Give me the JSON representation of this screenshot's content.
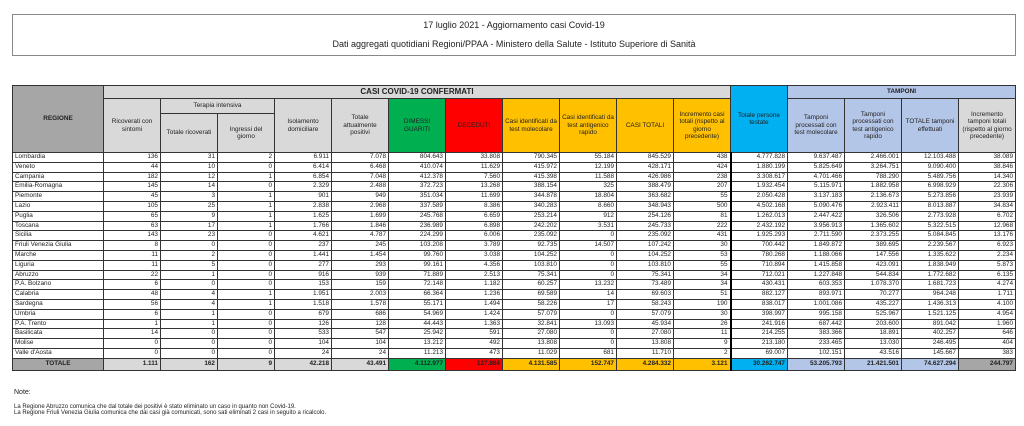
{
  "title": "17 luglio 2021 - Aggiornamento casi Covid-19",
  "subtitle": "Dati aggregati quotidiani Regioni/PPAA - Ministero della Salute - Istituto Superiore di Sanità",
  "header": {
    "regione": "REGIONE",
    "casi": "CASI COVID-19 CONFERMATI",
    "tamponi": "TAMPONI",
    "terapia": "Terapia intensiva",
    "cols": [
      "Ricoverati con sintomi",
      "Totale ricoverati",
      "Ingressi del giorno",
      "Isolamento domiciliare",
      "Totale attualmente positivi",
      "DIMESSI GUARITI",
      "DECEDUTI",
      "Casi identificati da test molecolare",
      "Casi identificati da test antigenico rapido",
      "CASI TOTALI",
      "Incremento casi totali (rispetto al giorno precedente)",
      "Totale persone testate",
      "Tamponi processati con test molecolare",
      "Tamponi processati con test antigenico rapido",
      "TOTALE tamponi effettuati",
      "Incremento tamponi totali (rispetto al giorno precedente)"
    ]
  },
  "rows": [
    [
      "Lombardia",
      "136",
      "31",
      "2",
      "6.911",
      "7.078",
      "804.643",
      "33.808",
      "790.345",
      "55.184",
      "845.529",
      "438",
      "4.777.828",
      "9.637.487",
      "2.466.001",
      "12.103.488",
      "38.089"
    ],
    [
      "Veneto",
      "44",
      "10",
      "0",
      "6.414",
      "6.468",
      "410.074",
      "11.629",
      "415.972",
      "12.199",
      "428.171",
      "424",
      "1.880.199",
      "5.825.649",
      "3.264.751",
      "9.090.400",
      "38.846"
    ],
    [
      "Campania",
      "182",
      "12",
      "1",
      "6.854",
      "7.048",
      "412.378",
      "7.560",
      "415.398",
      "11.588",
      "426.986",
      "238",
      "3.308.617",
      "4.701.466",
      "788.290",
      "5.489.756",
      "14.340"
    ],
    [
      "Emilia-Romagna",
      "145",
      "14",
      "0",
      "2.329",
      "2.488",
      "372.723",
      "13.268",
      "388.154",
      "325",
      "388.479",
      "207",
      "1.932.454",
      "5.115.971",
      "1.882.958",
      "6.998.929",
      "22.306"
    ],
    [
      "Piemonte",
      "45",
      "3",
      "1",
      "901",
      "949",
      "351.034",
      "11.699",
      "344.878",
      "18.804",
      "363.682",
      "55",
      "2.050.428",
      "3.137.183",
      "2.136.673",
      "5.273.856",
      "23.939"
    ],
    [
      "Lazio",
      "105",
      "25",
      "1",
      "2.838",
      "2.968",
      "337.589",
      "8.386",
      "340.283",
      "8.660",
      "348.943",
      "500",
      "4.502.168",
      "5.090.476",
      "2.923.411",
      "8.013.887",
      "34.834"
    ],
    [
      "Puglia",
      "65",
      "9",
      "1",
      "1.625",
      "1.699",
      "245.768",
      "6.659",
      "253.214",
      "912",
      "254.126",
      "81",
      "1.262.013",
      "2.447.422",
      "326.506",
      "2.773.928",
      "6.702"
    ],
    [
      "Toscana",
      "63",
      "17",
      "1",
      "1.766",
      "1.846",
      "236.989",
      "6.898",
      "242.202",
      "3.531",
      "245.733",
      "222",
      "2.432.192",
      "3.956.913",
      "1.365.602",
      "5.322.515",
      "12.968"
    ],
    [
      "Sicilia",
      "143",
      "23",
      "0",
      "4.621",
      "4.787",
      "224.299",
      "6.006",
      "235.092",
      "0",
      "235.092",
      "431",
      "1.925.293",
      "2.711.590",
      "2.373.255",
      "5.084.845",
      "13.176"
    ],
    [
      "Friuli Venezia Giulia",
      "8",
      "0",
      "0",
      "237",
      "245",
      "103.208",
      "3.789",
      "92.735",
      "14.507",
      "107.242",
      "30",
      "700.442",
      "1.849.872",
      "389.695",
      "2.239.567",
      "6.923"
    ],
    [
      "Marche",
      "11",
      "2",
      "0",
      "1.441",
      "1.454",
      "99.760",
      "3.038",
      "104.252",
      "0",
      "104.252",
      "53",
      "780.268",
      "1.188.066",
      "147.556",
      "1.335.622",
      "2.234"
    ],
    [
      "Liguria",
      "11",
      "5",
      "0",
      "277",
      "293",
      "99.161",
      "4.356",
      "103.810",
      "0",
      "103.810",
      "55",
      "710.894",
      "1.415.858",
      "423.091",
      "1.838.949",
      "5.873"
    ],
    [
      "Abruzzo",
      "22",
      "1",
      "0",
      "916",
      "939",
      "71.889",
      "2.513",
      "75.341",
      "0",
      "75.341",
      "34",
      "712.021",
      "1.227.848",
      "544.834",
      "1.772.682",
      "6.135"
    ],
    [
      "P.A. Bolzano",
      "6",
      "0",
      "0",
      "153",
      "159",
      "72.148",
      "1.182",
      "60.257",
      "13.232",
      "73.489",
      "34",
      "430.431",
      "603.353",
      "1.078.370",
      "1.681.723",
      "4.274"
    ],
    [
      "Calabria",
      "48",
      "4",
      "1",
      "1.951",
      "2.003",
      "66.364",
      "1.236",
      "69.589",
      "14",
      "69.603",
      "51",
      "882.127",
      "893.971",
      "70.277",
      "964.248",
      "1.711"
    ],
    [
      "Sardegna",
      "56",
      "4",
      "1",
      "1.518",
      "1.578",
      "55.171",
      "1.494",
      "58.226",
      "17",
      "58.243",
      "190",
      "838.017",
      "1.001.086",
      "435.227",
      "1.436.313",
      "4.100"
    ],
    [
      "Umbria",
      "6",
      "1",
      "0",
      "679",
      "686",
      "54.969",
      "1.424",
      "57.079",
      "0",
      "57.079",
      "30",
      "398.997",
      "995.158",
      "525.967",
      "1.521.125",
      "4.954"
    ],
    [
      "P.A. Trento",
      "1",
      "1",
      "0",
      "126",
      "128",
      "44.443",
      "1.363",
      "32.841",
      "13.093",
      "45.934",
      "26",
      "241.916",
      "687.442",
      "203.600",
      "891.042",
      "1.960"
    ],
    [
      "Basilicata",
      "14",
      "0",
      "0",
      "533",
      "547",
      "25.942",
      "591",
      "27.080",
      "0",
      "27.080",
      "11",
      "214.255",
      "383.366",
      "18.891",
      "402.257",
      "646"
    ],
    [
      "Molise",
      "0",
      "0",
      "0",
      "104",
      "104",
      "13.212",
      "492",
      "13.808",
      "0",
      "13.808",
      "9",
      "213.180",
      "233.465",
      "13.030",
      "246.495",
      "404"
    ],
    [
      "Valle d'Aosta",
      "0",
      "0",
      "0",
      "24",
      "24",
      "11.213",
      "473",
      "11.029",
      "681",
      "11.710",
      "2",
      "69.007",
      "102.151",
      "43.516",
      "145.667",
      "383"
    ]
  ],
  "total": [
    "TOTALE",
    "1.111",
    "162",
    "9",
    "42.218",
    "43.491",
    "4.112.977",
    "127.864",
    "4.131.585",
    "152.747",
    "4.284.332",
    "3.121",
    "30.262.747",
    "53.205.793",
    "21.421.501",
    "74.627.294",
    "244.797"
  ],
  "notes": {
    "label": "Note:",
    "lines": [
      "La Regione Abruzzo comunica che dal totale dei positivi è stato eliminato un caso in quanto non Covid-19.",
      "La Regione Friuli Venezia Giulia comunica che dai casi già comunicati, sono sati eliminati 2 casi in seguito a ricalcolo."
    ]
  },
  "colors": {
    "dimessi": "#00b050",
    "deceduti": "#ff0000",
    "casi": "#ffc000",
    "testate": "#00b0f0",
    "tamponi": "#b4c6e7"
  }
}
